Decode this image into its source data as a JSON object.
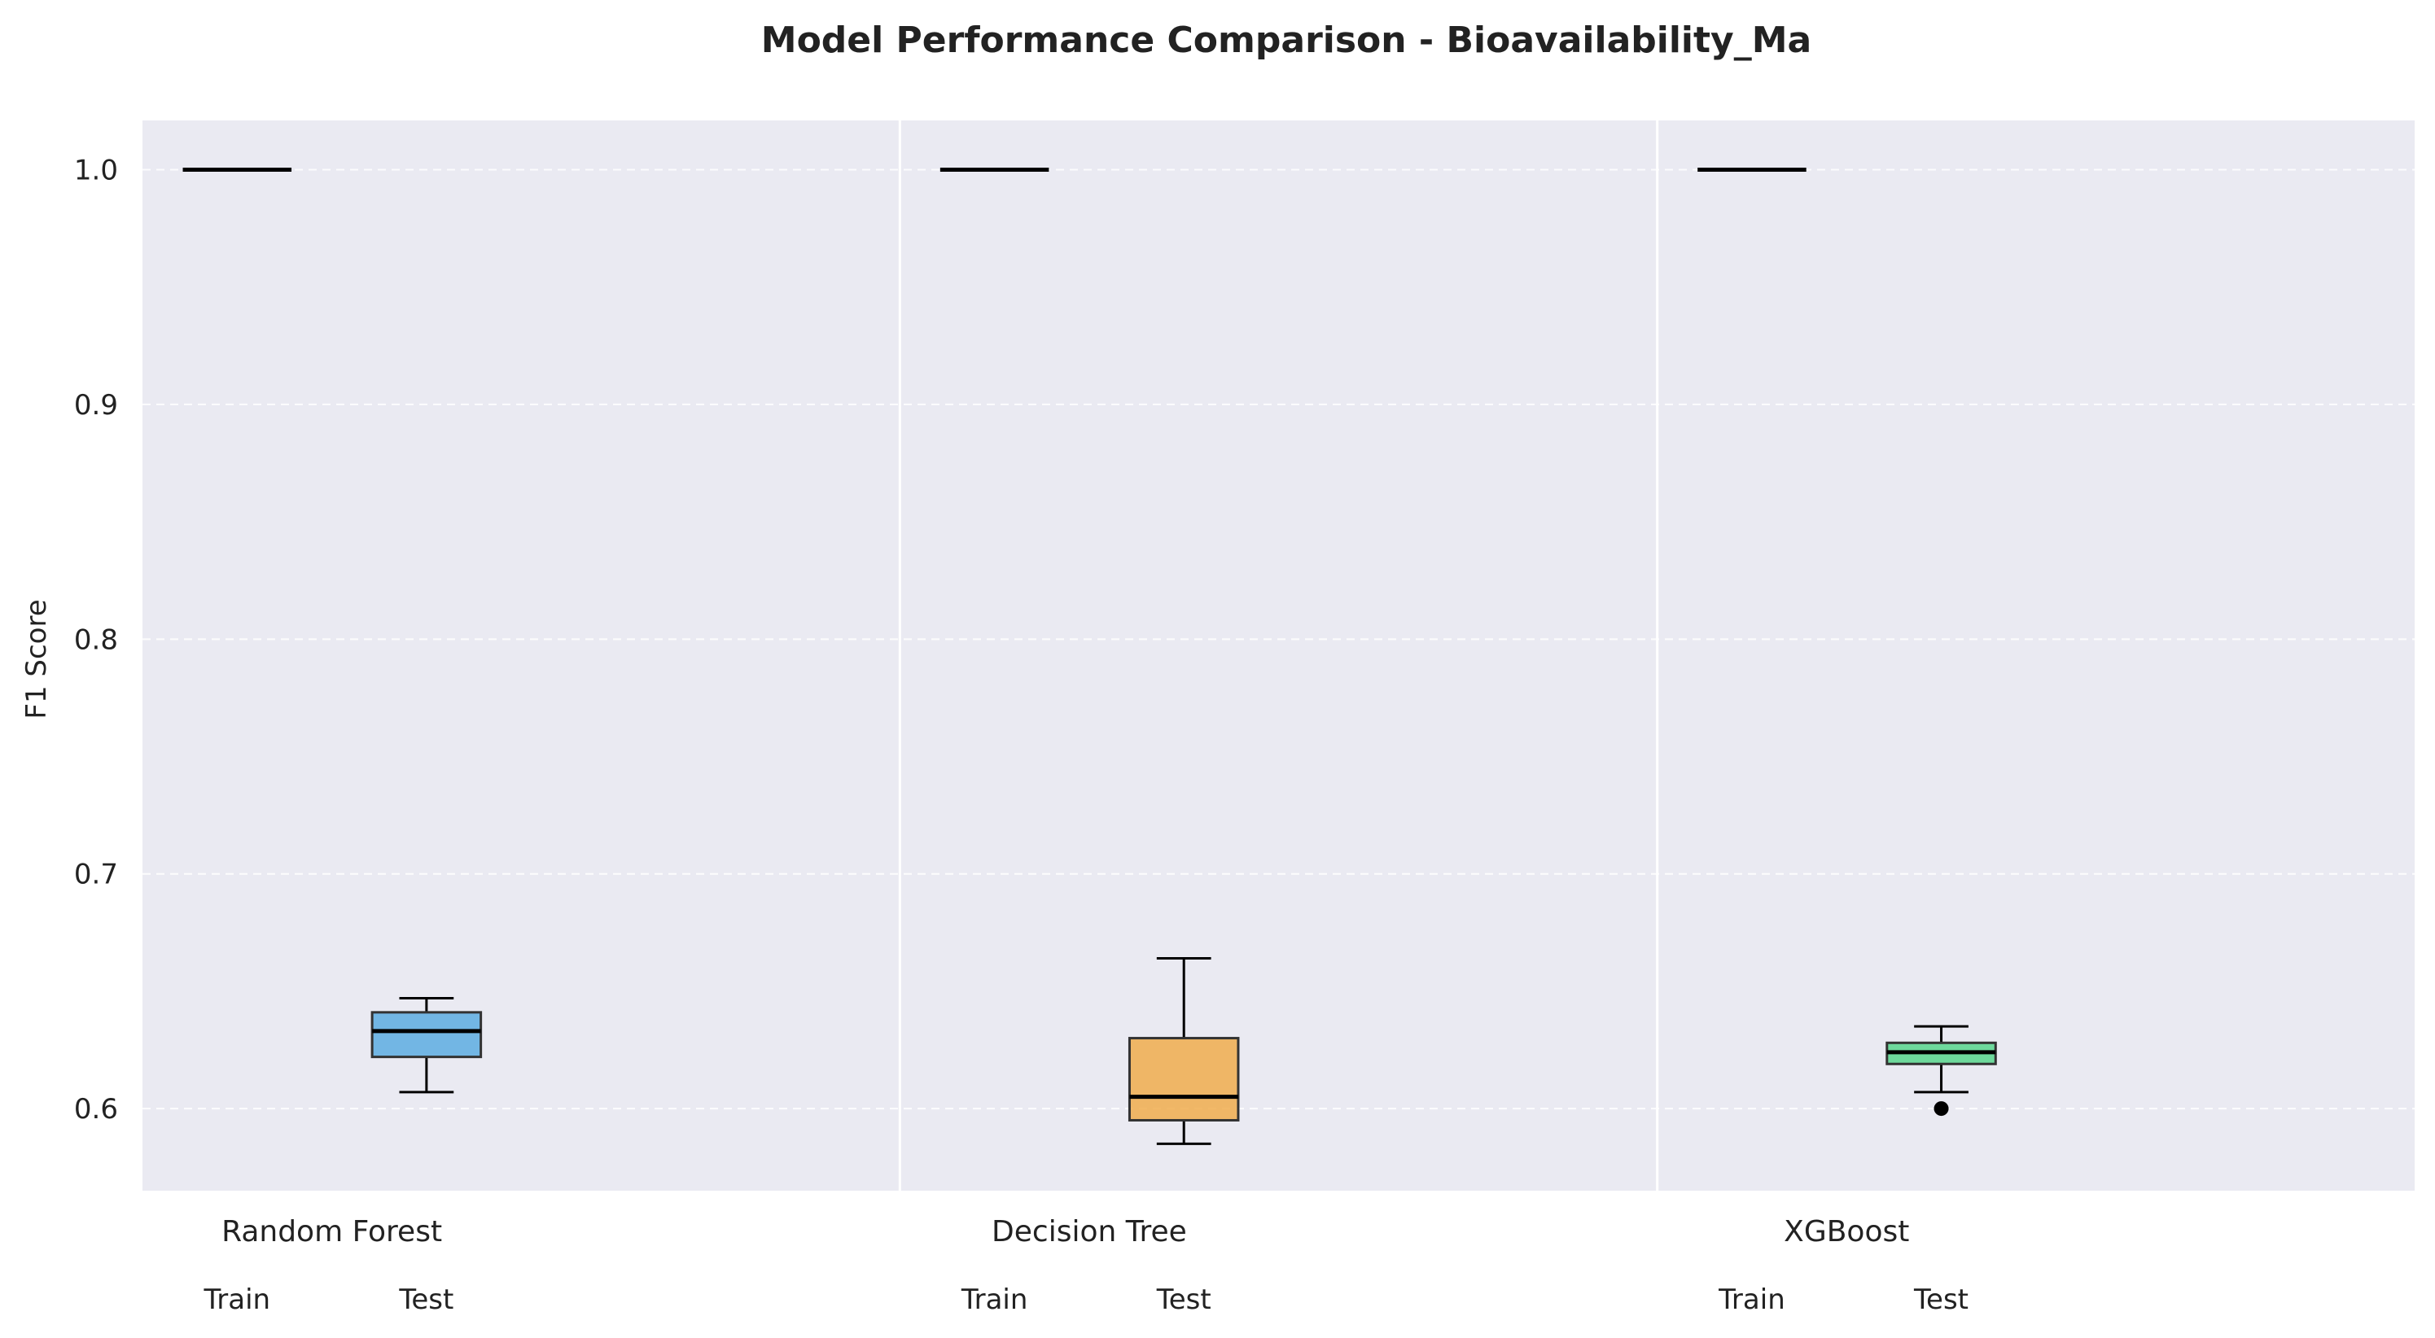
{
  "chart_data": {
    "type": "box",
    "title": "Model Performance Comparison - Bioavailability_Ma",
    "ylabel": "F1 Score",
    "xlabel": "",
    "ylim": [
      0.565,
      1.021
    ],
    "yticks": [
      0.6,
      0.7,
      0.8,
      0.9,
      1.0
    ],
    "ytick_labels": [
      "0.6",
      "0.7",
      "0.8",
      "0.9",
      "1.0"
    ],
    "grid": true,
    "subcategories": [
      "Train",
      "Test"
    ],
    "groups": [
      {
        "name": "Random Forest",
        "color": "#5DADE2",
        "train": {
          "min": 1.0,
          "q1": 1.0,
          "median": 1.0,
          "q3": 1.0,
          "max": 1.0,
          "outliers": []
        },
        "test": {
          "min": 0.607,
          "q1": 0.622,
          "median": 0.633,
          "q3": 0.641,
          "max": 0.647,
          "outliers": []
        }
      },
      {
        "name": "Decision Tree",
        "color": "#F0AD4E",
        "train": {
          "min": 1.0,
          "q1": 1.0,
          "median": 1.0,
          "q3": 1.0,
          "max": 1.0,
          "outliers": []
        },
        "test": {
          "min": 0.585,
          "q1": 0.595,
          "median": 0.605,
          "q3": 0.63,
          "max": 0.664,
          "outliers": []
        }
      },
      {
        "name": "XGBoost",
        "color": "#58D68D",
        "train": {
          "min": 1.0,
          "q1": 1.0,
          "median": 1.0,
          "q3": 1.0,
          "max": 1.0,
          "outliers": []
        },
        "test": {
          "min": 0.607,
          "q1": 0.619,
          "median": 0.624,
          "q3": 0.628,
          "max": 0.635,
          "outliers": [
            0.6
          ]
        }
      }
    ]
  }
}
